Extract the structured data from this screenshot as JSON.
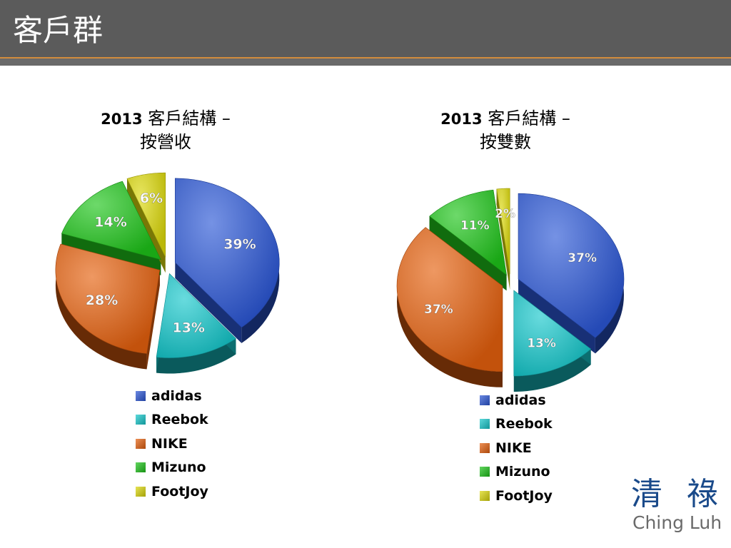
{
  "slide": {
    "title": "客戶群"
  },
  "logo": {
    "chinese": "清 祿",
    "english": "Ching Luh"
  },
  "colors": {
    "adidas": "#2b57d6",
    "Reebok": "#16c8cc",
    "NIKE": "#e5600e",
    "Mizuno": "#1ec41a",
    "FootJoy": "#dcd80a"
  },
  "chart_data": [
    {
      "type": "pie",
      "title_year": "2013",
      "title_line1": "客戶結構 –",
      "title_line2": "按營收",
      "categories": [
        "adidas",
        "Reebok",
        "NIKE",
        "Mizuno",
        "FootJoy"
      ],
      "values": [
        39,
        13,
        28,
        14,
        6
      ],
      "data_labels": [
        "39%",
        "13%",
        "28%",
        "14%",
        "6%"
      ],
      "legend_position": "bottom"
    },
    {
      "type": "pie",
      "title_year": "2013",
      "title_line1": "客戶結構 –",
      "title_line2": "按雙數",
      "categories": [
        "adidas",
        "Reebok",
        "NIKE",
        "Mizuno",
        "FootJoy"
      ],
      "values": [
        37,
        13,
        37,
        11,
        2
      ],
      "data_labels": [
        "37%",
        "13%",
        "37%",
        "11%",
        "2%"
      ],
      "legend_position": "bottom"
    }
  ]
}
